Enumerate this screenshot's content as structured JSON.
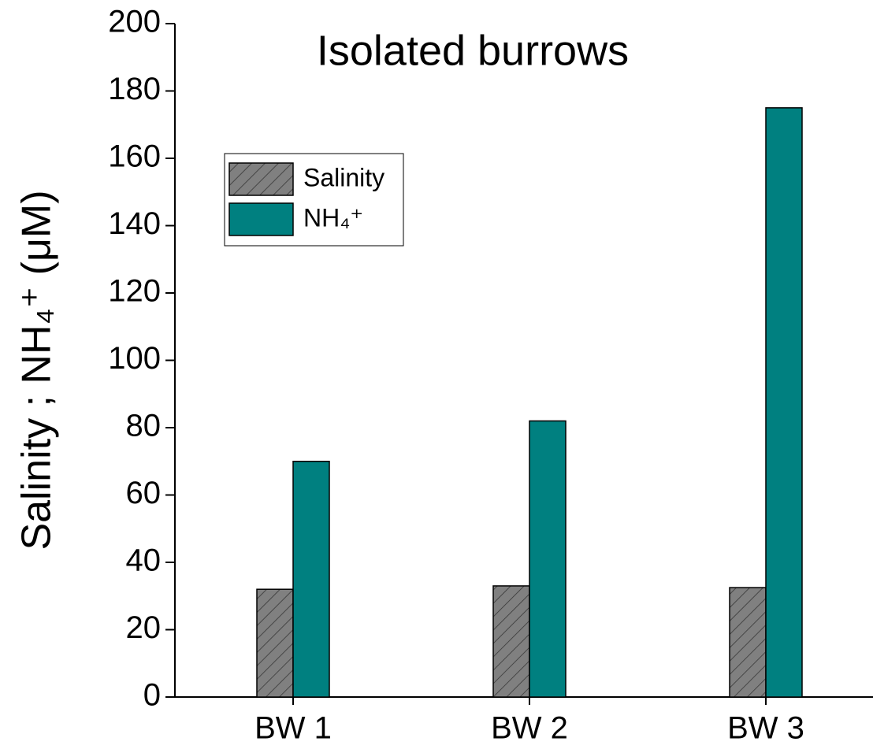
{
  "chart_data": {
    "type": "bar",
    "title": "Isolated burrows",
    "y_label": "Salinity ; NH₄⁺ (μM)",
    "categories": [
      "BW 1",
      "BW 2",
      "BW 3"
    ],
    "series": [
      {
        "name": "Salinity",
        "color": "#808080",
        "hatch": "/",
        "values": [
          32,
          33,
          32.5
        ]
      },
      {
        "name": "NH₄⁺",
        "color": "#008080",
        "values": [
          70,
          82,
          175
        ]
      }
    ],
    "ylim": [
      0,
      200
    ],
    "yticks": [
      0,
      20,
      40,
      60,
      80,
      100,
      120,
      140,
      160,
      180,
      200
    ],
    "grid": false,
    "legend": "upper left"
  }
}
